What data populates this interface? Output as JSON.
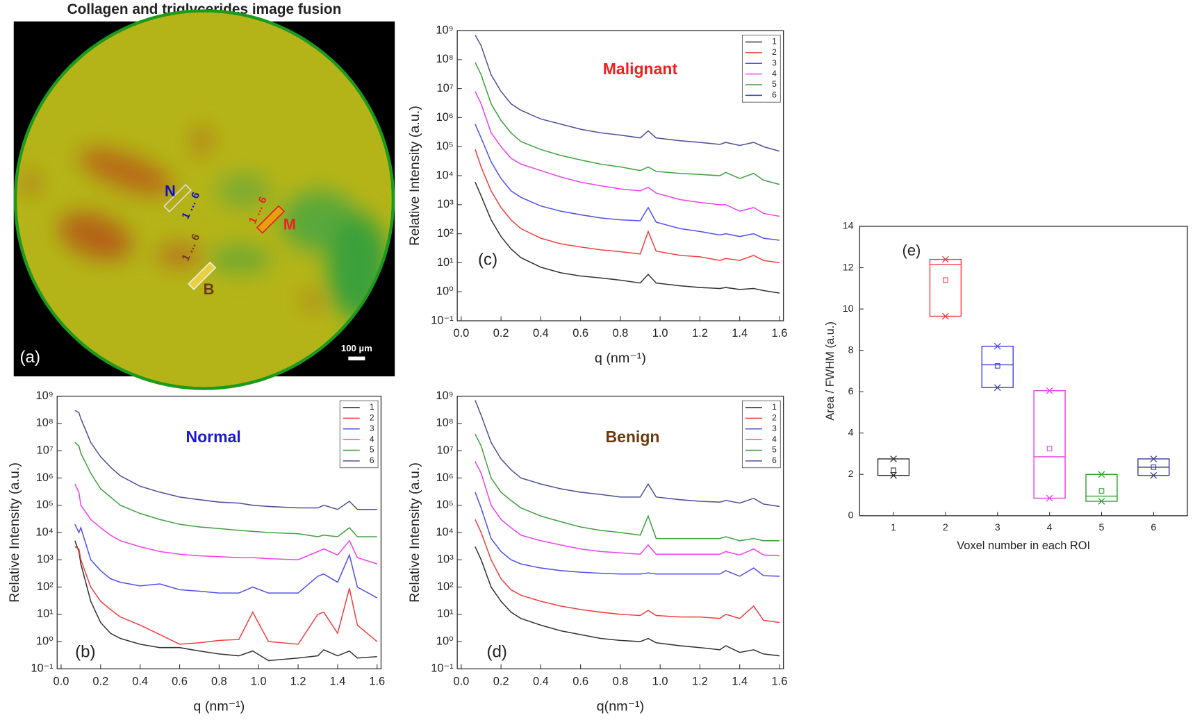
{
  "image": {
    "title": "Collagen and triglycerides image fusion",
    "roi_n": "N",
    "roi_m": "M",
    "roi_b": "B",
    "range_n": "1 … 6",
    "range_m": "1 … 6",
    "range_b": "1 … 6",
    "scale_bar": "100 µm",
    "panel_label": "(a)"
  },
  "chart_data": [
    {
      "type": "line",
      "annotation": "Normal",
      "annotation_color": "#1a1ad0",
      "panel_label": "(b)",
      "xlabel": "q (nm⁻¹)",
      "ylabel": "Relative Intensity (a.u.)",
      "log_y": true,
      "legend": "upper right",
      "xlim": [
        -0.02,
        1.62
      ],
      "ylim": [
        0.1,
        1000000000.0
      ],
      "xticks": [
        {
          "value": 0,
          "label": "0.0"
        },
        0.2,
        0.4,
        0.6,
        0.8,
        {
          "value": 1,
          "label": "1.0"
        },
        1.2,
        1.4,
        1.6
      ],
      "yticks": [
        {
          "value": 0.1,
          "label": "10⁻¹"
        },
        {
          "value": 1,
          "label": "10⁰"
        },
        {
          "value": 10,
          "label": "10¹"
        },
        {
          "value": 100,
          "label": "10²"
        },
        {
          "value": 1000,
          "label": "10³"
        },
        {
          "value": 10000.0,
          "label": "10⁴"
        },
        {
          "value": 100000.0,
          "label": "10⁵"
        },
        {
          "value": 1000000.0,
          "label": "10⁶"
        },
        {
          "value": 10000000.0,
          "label": "10⁷"
        },
        {
          "value": 100000000.0,
          "label": "10⁸"
        },
        {
          "value": 1000000000.0,
          "label": "10⁹"
        }
      ],
      "x": [
        0.07,
        0.09,
        0.1,
        0.15,
        0.2,
        0.25,
        0.3,
        0.4,
        0.5,
        0.6,
        0.7,
        0.8,
        0.9,
        0.97,
        1.05,
        1.2,
        1.3,
        1.33,
        1.4,
        1.46,
        1.5,
        1.6
      ],
      "series": [
        {
          "name": "1",
          "color": "#333333",
          "values": [
            5000.0,
            2000.0,
            700.0,
            30,
            5,
            2,
            1.3,
            0.8,
            0.6,
            0.6,
            0.45,
            0.35,
            0.3,
            0.45,
            0.2,
            0.25,
            0.3,
            0.5,
            0.3,
            0.45,
            0.25,
            0.28
          ]
        },
        {
          "name": "2",
          "color": "#f04040",
          "values": [
            3000.0,
            2500.0,
            1000.0,
            100,
            30,
            15,
            8,
            4,
            1.8,
            0.8,
            0.9,
            1.1,
            1.2,
            12,
            1,
            0.8,
            10,
            12,
            2,
            90,
            4,
            1
          ]
        },
        {
          "name": "3",
          "color": "#5050f0",
          "values": [
            20000.0,
            10000.0,
            15000.0,
            1000.0,
            400,
            200,
            150,
            110,
            130,
            80,
            70,
            60,
            60,
            100,
            60,
            60,
            250,
            300,
            150,
            1500.0,
            100,
            40
          ]
        },
        {
          "name": "4",
          "color": "#f040f0",
          "values": [
            600000.0,
            300000.0,
            100000.0,
            30000.0,
            15000.0,
            8000.0,
            5000.0,
            3000.0,
            2000.0,
            1600.0,
            1400.0,
            1300.0,
            1200.0,
            1200.0,
            1100.0,
            1000.0,
            2000.0,
            2500.0,
            1500.0,
            5000.0,
            1200.0,
            700
          ]
        },
        {
          "name": "5",
          "color": "#40a040",
          "values": [
            20000000.0,
            15000000.0,
            8000000.0,
            1500000.0,
            400000.0,
            200000.0,
            100000.0,
            50000.0,
            30000.0,
            20000.0,
            16000.0,
            14000.0,
            12000.0,
            11000.0,
            10000.0,
            9000.0,
            7000.0,
            8000.0,
            7000.0,
            15000.0,
            7000.0,
            7000.0
          ]
        },
        {
          "name": "6",
          "color": "#50509a",
          "values": [
            300000000.0,
            250000000.0,
            150000000.0,
            20000000.0,
            6000000.0,
            2500000.0,
            1200000.0,
            500000.0,
            300000.0,
            200000.0,
            160000.0,
            130000.0,
            120000.0,
            100000.0,
            90000.0,
            80000.0,
            80000.0,
            100000.0,
            70000.0,
            140000.0,
            70000.0,
            70000.0
          ]
        }
      ]
    },
    {
      "type": "line",
      "annotation": "Malignant",
      "annotation_color": "#f02020",
      "panel_label": "(c)",
      "xlabel": "q (nm⁻¹)",
      "ylabel": "Relative Intensity (a.u.)",
      "log_y": true,
      "legend": "upper right",
      "xlim": [
        -0.02,
        1.62
      ],
      "ylim": [
        0.1,
        1000000000.0
      ],
      "xticks": [
        {
          "value": 0,
          "label": "0.0"
        },
        0.2,
        0.4,
        0.6,
        0.8,
        {
          "value": 1,
          "label": "1.0"
        },
        1.2,
        1.4,
        1.6
      ],
      "yticks": [
        {
          "value": 0.1,
          "label": "10⁻¹"
        },
        {
          "value": 1,
          "label": "10⁰"
        },
        {
          "value": 10,
          "label": "10¹"
        },
        {
          "value": 100,
          "label": "10²"
        },
        {
          "value": 1000,
          "label": "10³"
        },
        {
          "value": 10000.0,
          "label": "10⁴"
        },
        {
          "value": 100000.0,
          "label": "10⁵"
        },
        {
          "value": 1000000.0,
          "label": "10⁶"
        },
        {
          "value": 10000000.0,
          "label": "10⁷"
        },
        {
          "value": 100000000.0,
          "label": "10⁸"
        },
        {
          "value": 1000000000.0,
          "label": "10⁹"
        }
      ],
      "x": [
        0.07,
        0.1,
        0.15,
        0.2,
        0.25,
        0.3,
        0.4,
        0.5,
        0.6,
        0.7,
        0.8,
        0.9,
        0.94,
        0.98,
        1.1,
        1.2,
        1.3,
        1.33,
        1.4,
        1.47,
        1.52,
        1.6
      ],
      "series": [
        {
          "name": "1",
          "color": "#333333",
          "values": [
            6000.0,
            2000.0,
            300,
            80,
            30,
            15,
            7,
            4.5,
            3.5,
            3,
            2.5,
            2,
            4,
            2,
            1.6,
            1.4,
            1.3,
            1.4,
            1.2,
            1.3,
            1.1,
            0.9
          ]
        },
        {
          "name": "2",
          "color": "#f04040",
          "values": [
            80000.0,
            20000.0,
            3000.0,
            800,
            300,
            150,
            70,
            45,
            35,
            28,
            24,
            20,
            120,
            25,
            18,
            16,
            12,
            14,
            12,
            18,
            12,
            10
          ]
        },
        {
          "name": "3",
          "color": "#5050f0",
          "values": [
            600000.0,
            200000.0,
            30000.0,
            8000.0,
            3000.0,
            1800.0,
            900,
            600,
            450,
            350,
            300,
            280,
            800,
            250,
            150,
            120,
            90,
            100,
            80,
            100,
            70,
            60
          ]
        },
        {
          "name": "4",
          "color": "#f040f0",
          "values": [
            8000000.0,
            3000000.0,
            300000.0,
            100000.0,
            40000.0,
            25000.0,
            15000.0,
            9000.0,
            6000.0,
            4500.0,
            3500.0,
            3000.0,
            4000.0,
            2500.0,
            1500.0,
            1200.0,
            1000.0,
            1000.0,
            600,
            800,
            500,
            400
          ]
        },
        {
          "name": "5",
          "color": "#40a040",
          "values": [
            80000000.0,
            30000000.0,
            3000000.0,
            800000.0,
            300000.0,
            150000.0,
            80000.0,
            50000.0,
            35000.0,
            25000.0,
            20000.0,
            15000.0,
            20000.0,
            14000.0,
            12000.0,
            11000.0,
            10000.0,
            13000.0,
            8000.0,
            12000.0,
            7000.0,
            5000.0
          ]
        },
        {
          "name": "6",
          "color": "#50509a",
          "values": [
            700000000.0,
            300000000.0,
            30000000.0,
            8000000.0,
            3000000.0,
            1800000.0,
            900000.0,
            600000.0,
            400000.0,
            300000.0,
            250000.0,
            200000.0,
            350000.0,
            200000.0,
            160000.0,
            140000.0,
            120000.0,
            140000.0,
            110000.0,
            140000.0,
            100000.0,
            70000.0
          ]
        }
      ]
    },
    {
      "type": "line",
      "annotation": "Benign",
      "annotation_color": "#6b3a10",
      "panel_label": "(d)",
      "xlabel": "q(nm⁻¹)",
      "ylabel": "Relative Intensity (a.u.)",
      "log_y": true,
      "legend": "upper right",
      "xlim": [
        -0.02,
        1.62
      ],
      "ylim": [
        0.1,
        1000000000.0
      ],
      "xticks": [
        {
          "value": 0,
          "label": "0.0"
        },
        0.2,
        0.4,
        0.6,
        0.8,
        {
          "value": 1,
          "label": "1.0"
        },
        1.2,
        1.4,
        1.6
      ],
      "yticks": [
        {
          "value": 0.1,
          "label": "10⁻¹"
        },
        {
          "value": 1,
          "label": "10⁰"
        },
        {
          "value": 10,
          "label": "10¹"
        },
        {
          "value": 100,
          "label": "10²"
        },
        {
          "value": 1000,
          "label": "10³"
        },
        {
          "value": 10000.0,
          "label": "10⁴"
        },
        {
          "value": 100000.0,
          "label": "10⁵"
        },
        {
          "value": 1000000.0,
          "label": "10⁶"
        },
        {
          "value": 10000000.0,
          "label": "10⁷"
        },
        {
          "value": 100000000.0,
          "label": "10⁸"
        },
        {
          "value": 1000000000.0,
          "label": "10⁹"
        }
      ],
      "x": [
        0.07,
        0.1,
        0.15,
        0.2,
        0.25,
        0.3,
        0.4,
        0.5,
        0.6,
        0.7,
        0.8,
        0.9,
        0.94,
        0.98,
        1.1,
        1.2,
        1.3,
        1.33,
        1.4,
        1.47,
        1.52,
        1.6
      ],
      "series": [
        {
          "name": "1",
          "color": "#333333",
          "values": [
            3000.0,
            1000.0,
            100,
            30,
            12,
            7,
            4,
            2.5,
            1.8,
            1.3,
            1.1,
            1,
            1.3,
            0.9,
            0.7,
            0.6,
            0.5,
            0.7,
            0.4,
            0.5,
            0.35,
            0.3
          ]
        },
        {
          "name": "2",
          "color": "#f04040",
          "values": [
            30000.0,
            10000.0,
            1000.0,
            200,
            80,
            50,
            30,
            20,
            15,
            12,
            10,
            9,
            14,
            9,
            8,
            8,
            7,
            10,
            7,
            20,
            6,
            5
          ]
        },
        {
          "name": "3",
          "color": "#5050f0",
          "values": [
            300000.0,
            80000.0,
            6000.0,
            2000.0,
            1000.0,
            700,
            500,
            400,
            350,
            320,
            300,
            300,
            330,
            300,
            300,
            300,
            300,
            400,
            250,
            500,
            260,
            250
          ]
        },
        {
          "name": "4",
          "color": "#f040f0",
          "values": [
            4000000.0,
            1500000.0,
            100000.0,
            30000.0,
            15000.0,
            8000.0,
            5000.0,
            3500.0,
            2500.0,
            2000.0,
            1800.0,
            1600.0,
            3500.0,
            1600.0,
            1600.0,
            1600.0,
            1600.0,
            2000.0,
            1500.0,
            2500.0,
            1500.0,
            1400.0
          ]
        },
        {
          "name": "5",
          "color": "#40a040",
          "values": [
            40000000.0,
            15000000.0,
            1000000.0,
            300000.0,
            150000.0,
            80000.0,
            40000.0,
            25000.0,
            16000.0,
            12000.0,
            10000.0,
            8000.0,
            40000.0,
            6000.0,
            6000.0,
            6000.0,
            6000.0,
            7000.0,
            5000.0,
            6000.0,
            5000.0,
            5000.0
          ]
        },
        {
          "name": "6",
          "color": "#50509a",
          "values": [
            700000000.0,
            200000000.0,
            20000000.0,
            5000000.0,
            2000000.0,
            1000000.0,
            600000.0,
            400000.0,
            300000.0,
            250000.0,
            200000.0,
            200000.0,
            600000.0,
            200000.0,
            160000.0,
            140000.0,
            130000.0,
            150000.0,
            120000.0,
            180000.0,
            110000.0,
            90000.0
          ]
        }
      ]
    },
    {
      "type": "box",
      "annotation": "(e)",
      "xlabel": "Voxel number in each ROI",
      "ylabel": "Area / FWHM (a.u.)",
      "categories": [
        "1",
        "2",
        "3",
        "4",
        "5",
        "6"
      ],
      "colors": [
        "#333333",
        "#f04040",
        "#4040e0",
        "#e040e0",
        "#30a030",
        "#404098"
      ],
      "ylim": [
        0,
        14
      ],
      "yticks": [
        0,
        2,
        4,
        6,
        8,
        10,
        12,
        14
      ],
      "min": [
        1.95,
        9.65,
        6.2,
        0.85,
        0.7,
        1.95
      ],
      "q1": [
        1.95,
        9.65,
        6.2,
        0.85,
        0.7,
        1.95
      ],
      "median": [
        1.95,
        12.15,
        7.3,
        2.85,
        0.95,
        2.35
      ],
      "q3": [
        2.75,
        12.4,
        8.2,
        6.05,
        2.0,
        2.75
      ],
      "max": [
        2.75,
        12.4,
        8.2,
        6.05,
        2.0,
        2.75
      ],
      "mean": [
        2.2,
        11.4,
        7.25,
        3.25,
        1.2,
        2.35
      ]
    }
  ]
}
